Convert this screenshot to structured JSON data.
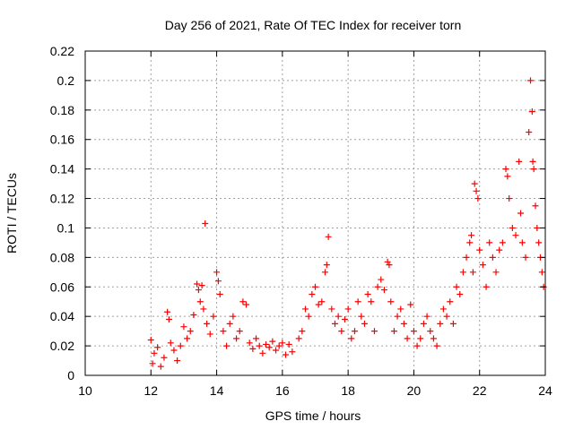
{
  "chart_data": {
    "type": "scatter",
    "title": "Day 256 of 2021, Rate Of TEC Index for receiver torn",
    "xlabel": "GPS time / hours",
    "ylabel": "ROTI / TECUs",
    "xlim": [
      10,
      24
    ],
    "ylim": [
      0,
      0.22
    ],
    "xticks": [
      "10",
      "12",
      "14",
      "16",
      "18",
      "20",
      "22",
      "24"
    ],
    "yticks": [
      "0",
      "0.02",
      "0.04",
      "0.06",
      "0.08",
      "0.1",
      "0.12",
      "0.14",
      "0.16",
      "0.18",
      "0.2",
      "0.22"
    ],
    "grid": true,
    "marker": "plus",
    "color": "#ff0000",
    "series": [
      {
        "points": [
          [
            12.0,
            0.024
          ],
          [
            12.05,
            0.008
          ],
          [
            12.1,
            0.015
          ],
          [
            12.2,
            0.019
          ],
          [
            12.3,
            0.006
          ],
          [
            12.4,
            0.012
          ],
          [
            12.5,
            0.043
          ],
          [
            12.55,
            0.038
          ],
          [
            12.6,
            0.022
          ],
          [
            12.7,
            0.017
          ],
          [
            12.8,
            0.01
          ],
          [
            12.9,
            0.02
          ],
          [
            13.0,
            0.033
          ],
          [
            13.1,
            0.025
          ],
          [
            13.2,
            0.03
          ],
          [
            13.3,
            0.041
          ],
          [
            13.4,
            0.062
          ],
          [
            13.45,
            0.058
          ],
          [
            13.5,
            0.05
          ],
          [
            13.55,
            0.061
          ],
          [
            13.6,
            0.045
          ],
          [
            13.65,
            0.103
          ],
          [
            13.7,
            0.035
          ],
          [
            13.8,
            0.028
          ],
          [
            13.9,
            0.04
          ],
          [
            14.0,
            0.07
          ],
          [
            14.05,
            0.064
          ],
          [
            14.1,
            0.055
          ],
          [
            14.2,
            0.03
          ],
          [
            14.3,
            0.02
          ],
          [
            14.4,
            0.035
          ],
          [
            14.5,
            0.04
          ],
          [
            14.6,
            0.025
          ],
          [
            14.7,
            0.03
          ],
          [
            14.8,
            0.05
          ],
          [
            14.9,
            0.048
          ],
          [
            15.0,
            0.022
          ],
          [
            15.1,
            0.018
          ],
          [
            15.2,
            0.025
          ],
          [
            15.3,
            0.02
          ],
          [
            15.4,
            0.015
          ],
          [
            15.5,
            0.021
          ],
          [
            15.6,
            0.019
          ],
          [
            15.7,
            0.023
          ],
          [
            15.8,
            0.017
          ],
          [
            15.9,
            0.02
          ],
          [
            16.0,
            0.022
          ],
          [
            16.1,
            0.014
          ],
          [
            16.2,
            0.021
          ],
          [
            16.3,
            0.016
          ],
          [
            16.5,
            0.025
          ],
          [
            16.6,
            0.03
          ],
          [
            16.7,
            0.045
          ],
          [
            16.8,
            0.04
          ],
          [
            16.9,
            0.055
          ],
          [
            17.0,
            0.06
          ],
          [
            17.1,
            0.048
          ],
          [
            17.2,
            0.05
          ],
          [
            17.3,
            0.07
          ],
          [
            17.35,
            0.075
          ],
          [
            17.4,
            0.094
          ],
          [
            17.5,
            0.045
          ],
          [
            17.6,
            0.035
          ],
          [
            17.7,
            0.04
          ],
          [
            17.8,
            0.03
          ],
          [
            17.9,
            0.038
          ],
          [
            18.0,
            0.045
          ],
          [
            18.1,
            0.025
          ],
          [
            18.2,
            0.03
          ],
          [
            18.3,
            0.05
          ],
          [
            18.4,
            0.04
          ],
          [
            18.5,
            0.035
          ],
          [
            18.6,
            0.055
          ],
          [
            18.7,
            0.05
          ],
          [
            18.8,
            0.03
          ],
          [
            18.9,
            0.06
          ],
          [
            19.0,
            0.065
          ],
          [
            19.1,
            0.058
          ],
          [
            19.2,
            0.077
          ],
          [
            19.25,
            0.075
          ],
          [
            19.3,
            0.05
          ],
          [
            19.4,
            0.03
          ],
          [
            19.5,
            0.04
          ],
          [
            19.6,
            0.045
          ],
          [
            19.7,
            0.035
          ],
          [
            19.8,
            0.025
          ],
          [
            19.9,
            0.048
          ],
          [
            20.0,
            0.03
          ],
          [
            20.1,
            0.02
          ],
          [
            20.2,
            0.025
          ],
          [
            20.3,
            0.035
          ],
          [
            20.4,
            0.04
          ],
          [
            20.5,
            0.03
          ],
          [
            20.6,
            0.025
          ],
          [
            20.7,
            0.02
          ],
          [
            20.8,
            0.035
          ],
          [
            20.9,
            0.045
          ],
          [
            21.0,
            0.04
          ],
          [
            21.1,
            0.05
          ],
          [
            21.2,
            0.035
          ],
          [
            21.3,
            0.06
          ],
          [
            21.4,
            0.055
          ],
          [
            21.5,
            0.07
          ],
          [
            21.6,
            0.08
          ],
          [
            21.7,
            0.09
          ],
          [
            21.75,
            0.095
          ],
          [
            21.8,
            0.07
          ],
          [
            21.85,
            0.13
          ],
          [
            21.9,
            0.125
          ],
          [
            21.95,
            0.12
          ],
          [
            22.0,
            0.085
          ],
          [
            22.1,
            0.075
          ],
          [
            22.2,
            0.06
          ],
          [
            22.3,
            0.09
          ],
          [
            22.4,
            0.08
          ],
          [
            22.5,
            0.07
          ],
          [
            22.6,
            0.085
          ],
          [
            22.7,
            0.09
          ],
          [
            22.8,
            0.14
          ],
          [
            22.85,
            0.135
          ],
          [
            22.9,
            0.12
          ],
          [
            23.0,
            0.1
          ],
          [
            23.1,
            0.095
          ],
          [
            23.2,
            0.145
          ],
          [
            23.25,
            0.11
          ],
          [
            23.3,
            0.09
          ],
          [
            23.4,
            0.08
          ],
          [
            23.5,
            0.165
          ],
          [
            23.55,
            0.2
          ],
          [
            23.6,
            0.179
          ],
          [
            23.62,
            0.145
          ],
          [
            23.65,
            0.14
          ],
          [
            23.7,
            0.115
          ],
          [
            23.75,
            0.1
          ],
          [
            23.8,
            0.09
          ],
          [
            23.85,
            0.08
          ],
          [
            23.9,
            0.07
          ],
          [
            23.95,
            0.06
          ]
        ]
      }
    ]
  }
}
